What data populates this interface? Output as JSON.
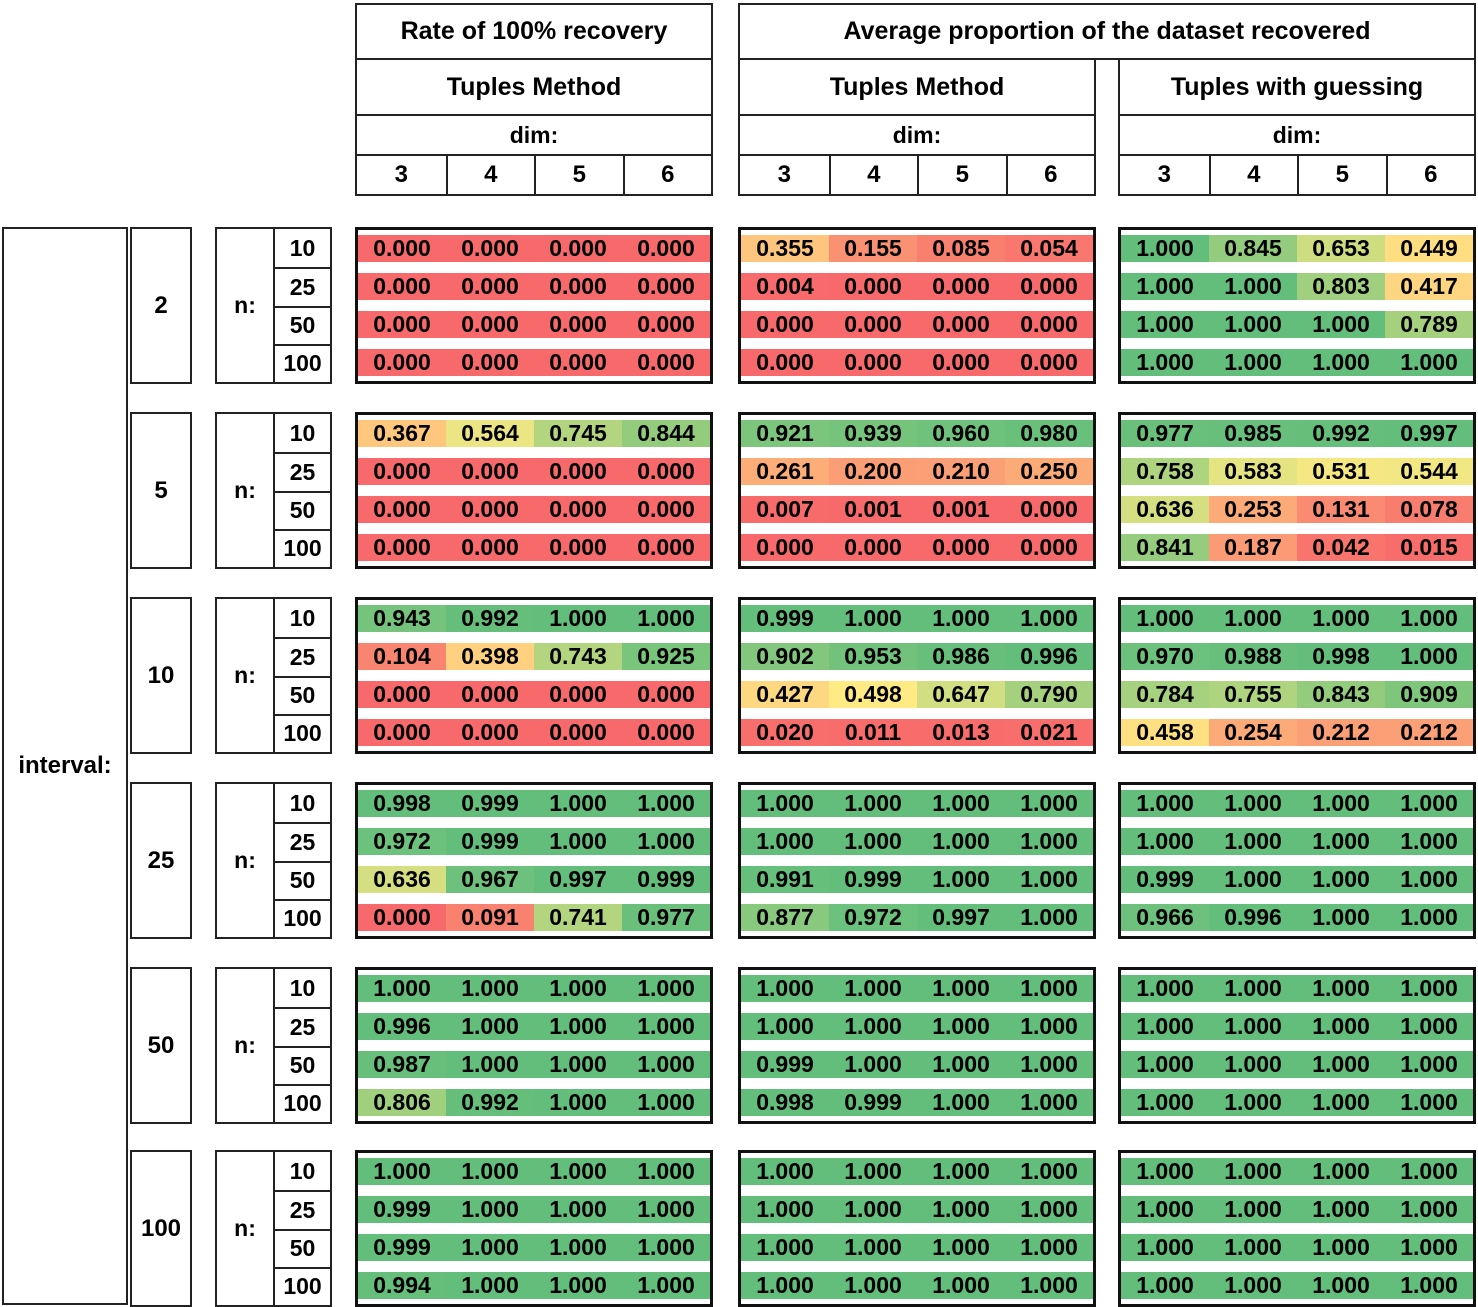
{
  "header": {
    "group_titles": [
      "Rate of 100% recovery",
      "Average proportion of the dataset recovered"
    ],
    "methods": [
      "Tuples Method",
      "Tuples Method",
      "Tuples with guessing"
    ],
    "dim_label": "dim:",
    "dims": [
      "3",
      "4",
      "5",
      "6"
    ]
  },
  "left": {
    "interval_label": "interval:",
    "n_label": "n:",
    "intervals": [
      "2",
      "5",
      "10",
      "25",
      "50",
      "100"
    ],
    "n_values": [
      "10",
      "25",
      "50",
      "100"
    ]
  },
  "heatmap": {
    "min_color": "#F8696B",
    "mid_color": "#FFEB84",
    "max_color": "#63BE7B",
    "min_value": 0,
    "mid_value": 0.5,
    "max_value": 1
  },
  "chart_data": {
    "type": "heatmap",
    "columns_dims": [
      "3",
      "4",
      "5",
      "6"
    ],
    "row_intervals": [
      "2",
      "5",
      "10",
      "25",
      "50",
      "100"
    ],
    "row_n": [
      "10",
      "25",
      "50",
      "100"
    ],
    "legend": "cell color encodes value from 0 (red) through 0.5 (yellow) to 1 (green)",
    "blocks": [
      {
        "group_title": "Rate of 100% recovery",
        "method": "Tuples Method",
        "values": [
          [
            [
              "0.000",
              "0.000",
              "0.000",
              "0.000"
            ],
            [
              "0.000",
              "0.000",
              "0.000",
              "0.000"
            ],
            [
              "0.000",
              "0.000",
              "0.000",
              "0.000"
            ],
            [
              "0.000",
              "0.000",
              "0.000",
              "0.000"
            ]
          ],
          [
            [
              "0.367",
              "0.564",
              "0.745",
              "0.844"
            ],
            [
              "0.000",
              "0.000",
              "0.000",
              "0.000"
            ],
            [
              "0.000",
              "0.000",
              "0.000",
              "0.000"
            ],
            [
              "0.000",
              "0.000",
              "0.000",
              "0.000"
            ]
          ],
          [
            [
              "0.943",
              "0.992",
              "1.000",
              "1.000"
            ],
            [
              "0.104",
              "0.398",
              "0.743",
              "0.925"
            ],
            [
              "0.000",
              "0.000",
              "0.000",
              "0.000"
            ],
            [
              "0.000",
              "0.000",
              "0.000",
              "0.000"
            ]
          ],
          [
            [
              "0.998",
              "0.999",
              "1.000",
              "1.000"
            ],
            [
              "0.972",
              "0.999",
              "1.000",
              "1.000"
            ],
            [
              "0.636",
              "0.967",
              "0.997",
              "0.999"
            ],
            [
              "0.000",
              "0.091",
              "0.741",
              "0.977"
            ]
          ],
          [
            [
              "1.000",
              "1.000",
              "1.000",
              "1.000"
            ],
            [
              "0.996",
              "1.000",
              "1.000",
              "1.000"
            ],
            [
              "0.987",
              "1.000",
              "1.000",
              "1.000"
            ],
            [
              "0.806",
              "0.992",
              "1.000",
              "1.000"
            ]
          ],
          [
            [
              "1.000",
              "1.000",
              "1.000",
              "1.000"
            ],
            [
              "0.999",
              "1.000",
              "1.000",
              "1.000"
            ],
            [
              "0.999",
              "1.000",
              "1.000",
              "1.000"
            ],
            [
              "0.994",
              "1.000",
              "1.000",
              "1.000"
            ]
          ]
        ]
      },
      {
        "group_title": "Average proportion of the dataset recovered",
        "method": "Tuples Method",
        "values": [
          [
            [
              "0.355",
              "0.155",
              "0.085",
              "0.054"
            ],
            [
              "0.004",
              "0.000",
              "0.000",
              "0.000"
            ],
            [
              "0.000",
              "0.000",
              "0.000",
              "0.000"
            ],
            [
              "0.000",
              "0.000",
              "0.000",
              "0.000"
            ]
          ],
          [
            [
              "0.921",
              "0.939",
              "0.960",
              "0.980"
            ],
            [
              "0.261",
              "0.200",
              "0.210",
              "0.250"
            ],
            [
              "0.007",
              "0.001",
              "0.001",
              "0.000"
            ],
            [
              "0.000",
              "0.000",
              "0.000",
              "0.000"
            ]
          ],
          [
            [
              "0.999",
              "1.000",
              "1.000",
              "1.000"
            ],
            [
              "0.902",
              "0.953",
              "0.986",
              "0.996"
            ],
            [
              "0.427",
              "0.498",
              "0.647",
              "0.790"
            ],
            [
              "0.020",
              "0.011",
              "0.013",
              "0.021"
            ]
          ],
          [
            [
              "1.000",
              "1.000",
              "1.000",
              "1.000"
            ],
            [
              "1.000",
              "1.000",
              "1.000",
              "1.000"
            ],
            [
              "0.991",
              "0.999",
              "1.000",
              "1.000"
            ],
            [
              "0.877",
              "0.972",
              "0.997",
              "1.000"
            ]
          ],
          [
            [
              "1.000",
              "1.000",
              "1.000",
              "1.000"
            ],
            [
              "1.000",
              "1.000",
              "1.000",
              "1.000"
            ],
            [
              "0.999",
              "1.000",
              "1.000",
              "1.000"
            ],
            [
              "0.998",
              "0.999",
              "1.000",
              "1.000"
            ]
          ],
          [
            [
              "1.000",
              "1.000",
              "1.000",
              "1.000"
            ],
            [
              "1.000",
              "1.000",
              "1.000",
              "1.000"
            ],
            [
              "1.000",
              "1.000",
              "1.000",
              "1.000"
            ],
            [
              "1.000",
              "1.000",
              "1.000",
              "1.000"
            ]
          ]
        ]
      },
      {
        "group_title": "Average proportion of the dataset recovered",
        "method": "Tuples with guessing",
        "values": [
          [
            [
              "1.000",
              "0.845",
              "0.653",
              "0.449"
            ],
            [
              "1.000",
              "1.000",
              "0.803",
              "0.417"
            ],
            [
              "1.000",
              "1.000",
              "1.000",
              "0.789"
            ],
            [
              "1.000",
              "1.000",
              "1.000",
              "1.000"
            ]
          ],
          [
            [
              "0.977",
              "0.985",
              "0.992",
              "0.997"
            ],
            [
              "0.758",
              "0.583",
              "0.531",
              "0.544"
            ],
            [
              "0.636",
              "0.253",
              "0.131",
              "0.078"
            ],
            [
              "0.841",
              "0.187",
              "0.042",
              "0.015"
            ]
          ],
          [
            [
              "1.000",
              "1.000",
              "1.000",
              "1.000"
            ],
            [
              "0.970",
              "0.988",
              "0.998",
              "1.000"
            ],
            [
              "0.784",
              "0.755",
              "0.843",
              "0.909"
            ],
            [
              "0.458",
              "0.254",
              "0.212",
              "0.212"
            ]
          ],
          [
            [
              "1.000",
              "1.000",
              "1.000",
              "1.000"
            ],
            [
              "1.000",
              "1.000",
              "1.000",
              "1.000"
            ],
            [
              "0.999",
              "1.000",
              "1.000",
              "1.000"
            ],
            [
              "0.966",
              "0.996",
              "1.000",
              "1.000"
            ]
          ],
          [
            [
              "1.000",
              "1.000",
              "1.000",
              "1.000"
            ],
            [
              "1.000",
              "1.000",
              "1.000",
              "1.000"
            ],
            [
              "1.000",
              "1.000",
              "1.000",
              "1.000"
            ],
            [
              "1.000",
              "1.000",
              "1.000",
              "1.000"
            ]
          ],
          [
            [
              "1.000",
              "1.000",
              "1.000",
              "1.000"
            ],
            [
              "1.000",
              "1.000",
              "1.000",
              "1.000"
            ],
            [
              "1.000",
              "1.000",
              "1.000",
              "1.000"
            ],
            [
              "1.000",
              "1.000",
              "1.000",
              "1.000"
            ]
          ]
        ]
      }
    ]
  }
}
